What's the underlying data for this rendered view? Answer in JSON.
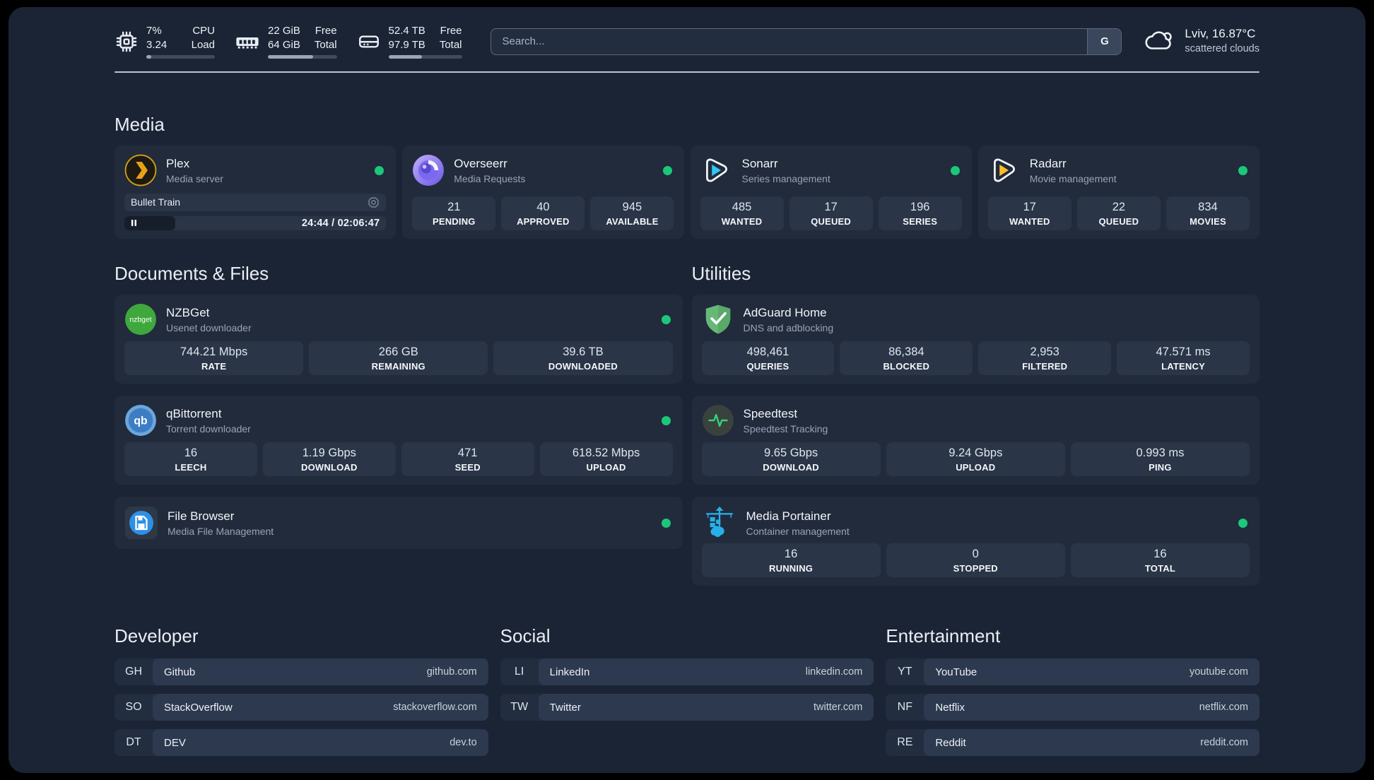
{
  "header": {
    "system": {
      "cpu": {
        "val_top": "7%",
        "val_bottom": "3.24",
        "lbl_top": "CPU",
        "lbl_bottom": "Load",
        "percent": 7
      },
      "memory": {
        "val_top": "22 GiB",
        "val_bottom": "64 GiB",
        "lbl_top": "Free",
        "lbl_bottom": "Total",
        "percent": 66
      },
      "disk": {
        "val_top": "52.4 TB",
        "val_bottom": "97.9 TB",
        "lbl_top": "Free",
        "lbl_bottom": "Total",
        "percent": 46
      }
    },
    "search": {
      "placeholder": "Search...",
      "provider_label": "G"
    },
    "weather": {
      "location_temp": "Lviv, 16.87°C",
      "condition": "scattered clouds"
    }
  },
  "sections": {
    "media": {
      "title": "Media",
      "plex": {
        "name": "Plex",
        "desc": "Media server",
        "now_playing": "Bullet Train",
        "time": "24:44 / 02:06:47",
        "progress_percent": 19.5
      },
      "overseerr": {
        "name": "Overseerr",
        "desc": "Media Requests",
        "stats": [
          {
            "value": "21",
            "label": "PENDING"
          },
          {
            "value": "40",
            "label": "APPROVED"
          },
          {
            "value": "945",
            "label": "AVAILABLE"
          }
        ]
      },
      "sonarr": {
        "name": "Sonarr",
        "desc": "Series management",
        "stats": [
          {
            "value": "485",
            "label": "WANTED"
          },
          {
            "value": "17",
            "label": "QUEUED"
          },
          {
            "value": "196",
            "label": "SERIES"
          }
        ]
      },
      "radarr": {
        "name": "Radarr",
        "desc": "Movie management",
        "stats": [
          {
            "value": "17",
            "label": "WANTED"
          },
          {
            "value": "22",
            "label": "QUEUED"
          },
          {
            "value": "834",
            "label": "MOVIES"
          }
        ]
      }
    },
    "documents": {
      "title": "Documents & Files",
      "nzbget": {
        "name": "NZBGet",
        "desc": "Usenet downloader",
        "stats": [
          {
            "value": "744.21 Mbps",
            "label": "RATE"
          },
          {
            "value": "266 GB",
            "label": "REMAINING"
          },
          {
            "value": "39.6 TB",
            "label": "DOWNLOADED"
          }
        ]
      },
      "qbittorrent": {
        "name": "qBittorrent",
        "desc": "Torrent downloader",
        "stats": [
          {
            "value": "16",
            "label": "LEECH"
          },
          {
            "value": "1.19 Gbps",
            "label": "DOWNLOAD"
          },
          {
            "value": "471",
            "label": "SEED"
          },
          {
            "value": "618.52 Mbps",
            "label": "UPLOAD"
          }
        ]
      },
      "filebrowser": {
        "name": "File Browser",
        "desc": "Media File Management"
      }
    },
    "utilities": {
      "title": "Utilities",
      "adguard": {
        "name": "AdGuard Home",
        "desc": "DNS and adblocking",
        "stats": [
          {
            "value": "498,461",
            "label": "QUERIES"
          },
          {
            "value": "86,384",
            "label": "BLOCKED"
          },
          {
            "value": "2,953",
            "label": "FILTERED"
          },
          {
            "value": "47.571 ms",
            "label": "LATENCY"
          }
        ]
      },
      "speedtest": {
        "name": "Speedtest",
        "desc": "Speedtest Tracking",
        "stats": [
          {
            "value": "9.65 Gbps",
            "label": "DOWNLOAD"
          },
          {
            "value": "9.24 Gbps",
            "label": "UPLOAD"
          },
          {
            "value": "0.993 ms",
            "label": "PING"
          }
        ]
      },
      "portainer": {
        "name": "Media Portainer",
        "desc": "Container management",
        "stats": [
          {
            "value": "16",
            "label": "RUNNING"
          },
          {
            "value": "0",
            "label": "STOPPED"
          },
          {
            "value": "16",
            "label": "TOTAL"
          }
        ]
      }
    },
    "bookmarks": {
      "developer": {
        "title": "Developer",
        "links": [
          {
            "abbr": "GH",
            "name": "Github",
            "url": "github.com"
          },
          {
            "abbr": "SO",
            "name": "StackOverflow",
            "url": "stackoverflow.com"
          },
          {
            "abbr": "DT",
            "name": "DEV",
            "url": "dev.to"
          }
        ]
      },
      "social": {
        "title": "Social",
        "links": [
          {
            "abbr": "LI",
            "name": "LinkedIn",
            "url": "linkedin.com"
          },
          {
            "abbr": "TW",
            "name": "Twitter",
            "url": "twitter.com"
          }
        ]
      },
      "entertainment": {
        "title": "Entertainment",
        "links": [
          {
            "abbr": "YT",
            "name": "YouTube",
            "url": "youtube.com"
          },
          {
            "abbr": "NF",
            "name": "Netflix",
            "url": "netflix.com"
          },
          {
            "abbr": "RE",
            "name": "Reddit",
            "url": "reddit.com"
          }
        ]
      }
    }
  },
  "colors": {
    "status_online": "#1dc779",
    "plex_accent": "#e8a117",
    "sonarr_accent": "#35c5f4",
    "radarr_accent": "#fbbf24"
  }
}
